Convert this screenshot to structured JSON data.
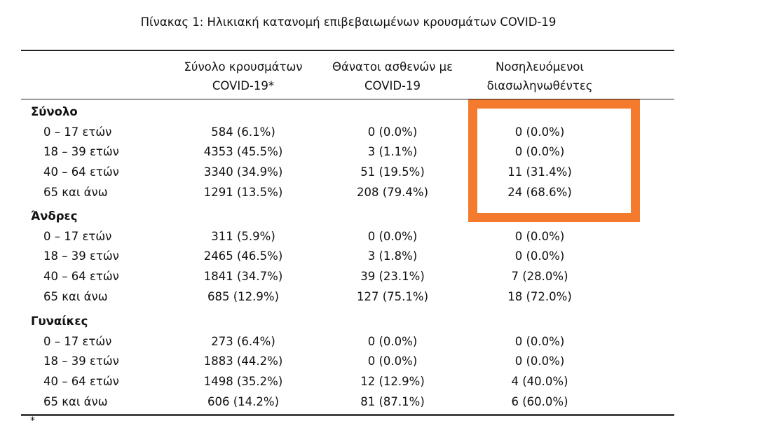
{
  "title": "Πίνακας 1: Ηλικιακή κατανομή επιβεβαιωμένων κρουσμάτων COVID-19",
  "headers": [
    [
      "Σύνολο κρουσμάτων",
      "COVID-19*"
    ],
    [
      "Θάνατοι ασθενών με",
      "COVID-19"
    ],
    [
      "Νοσηλευόμενοι",
      "διασωληνωθέντες"
    ]
  ],
  "sections": [
    {
      "label": "Σύνολο",
      "rows": [
        {
          "age": "0 – 17 ετών",
          "cases": "584 (6.1%)",
          "deaths": "0 (0.0%)",
          "intubated": "0 (0.0%)"
        },
        {
          "age": "18 – 39 ετών",
          "cases": "4353 (45.5%)",
          "deaths": "3 (1.1%)",
          "intubated": "0 (0.0%)"
        },
        {
          "age": "40 – 64 ετών",
          "cases": "3340 (34.9%)",
          "deaths": "51 (19.5%)",
          "intubated": "11 (31.4%)"
        },
        {
          "age": "65 και άνω",
          "cases": "1291 (13.5%)",
          "deaths": "208 (79.4%)",
          "intubated": "24 (68.6%)"
        }
      ]
    },
    {
      "label": "Άνδρες",
      "rows": [
        {
          "age": "0 – 17 ετών",
          "cases": "311 (5.9%)",
          "deaths": "0 (0.0%)",
          "intubated": "0 (0.0%)"
        },
        {
          "age": "18 – 39 ετών",
          "cases": "2465 (46.5%)",
          "deaths": "3 (1.8%)",
          "intubated": "0 (0.0%)"
        },
        {
          "age": "40 – 64 ετών",
          "cases": "1841 (34.7%)",
          "deaths": "39 (23.1%)",
          "intubated": "7 (28.0%)"
        },
        {
          "age": "65 και άνω",
          "cases": "685 (12.9%)",
          "deaths": "127 (75.1%)",
          "intubated": "18 (72.0%)"
        }
      ]
    },
    {
      "label": "Γυναίκες",
      "rows": [
        {
          "age": "0 – 17 ετών",
          "cases": "273 (6.4%)",
          "deaths": "0 (0.0%)",
          "intubated": "0 (0.0%)"
        },
        {
          "age": "18 – 39 ετών",
          "cases": "1883 (44.2%)",
          "deaths": "0 (0.0%)",
          "intubated": "0 (0.0%)"
        },
        {
          "age": "40 – 64 ετών",
          "cases": "1498 (35.2%)",
          "deaths": "12 (12.9%)",
          "intubated": "4 (40.0%)"
        },
        {
          "age": "65 και άνω",
          "cases": "606 (14.2%)",
          "deaths": "81 (87.1%)",
          "intubated": "6 (60.0%)"
        }
      ]
    }
  ],
  "footnote_marker": "*",
  "highlight_color": "#f47a2e"
}
